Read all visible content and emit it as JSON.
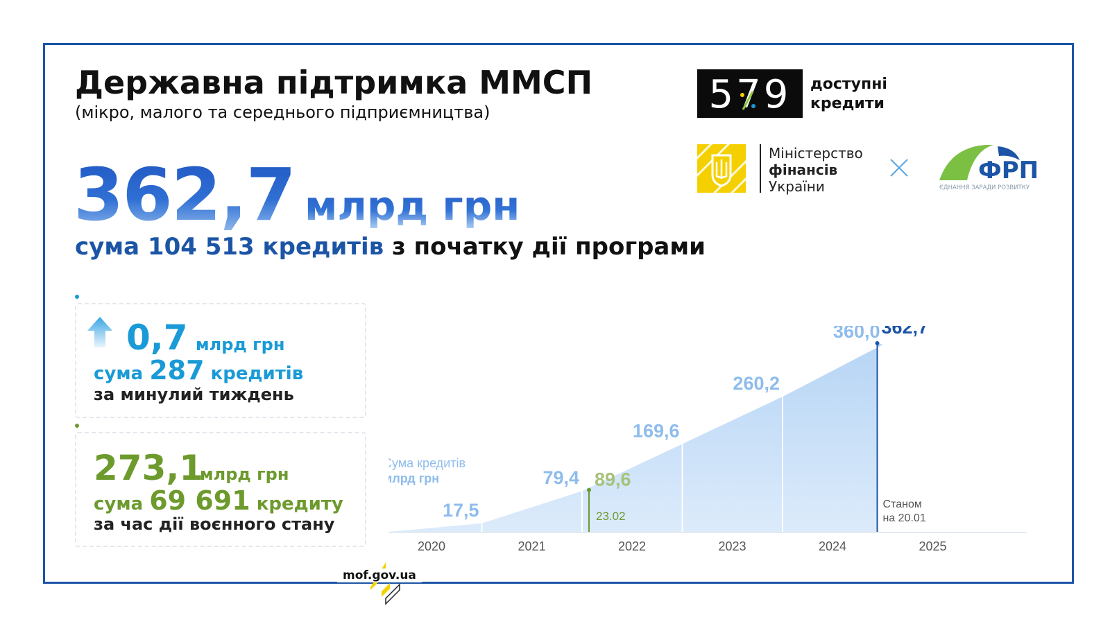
{
  "header": {
    "title": "Державна підтримка ММСП",
    "subtitle": "(мікро, малого та середнього підприємництва)"
  },
  "headline": {
    "value": "362,7",
    "unit": "млрд грн",
    "line_prefix": "сума",
    "count": "104 513",
    "count_word": "кредитів",
    "line_suffix": "з початку дії програми"
  },
  "weekly": {
    "value": "0,7",
    "unit": "млрд грн",
    "count_prefix": "сума",
    "count": "287",
    "count_word": "кредитів",
    "period": "за минулий тиждень",
    "color": "#1a9ad6"
  },
  "wartime": {
    "value": "273,1",
    "unit": "млрд грн",
    "count_prefix": "сума",
    "count": "69 691",
    "count_word": "кредиту",
    "period": "за час дії воєнного стану",
    "color": "#6d9a2d"
  },
  "logos": {
    "program_digits": "579",
    "program_line1": "доступні",
    "program_line2": "кредити",
    "ministry_line1": "Міністерство",
    "ministry_line2": "фінансів",
    "ministry_line3": "України",
    "partner_name": "ФРП",
    "partner_tagline": "ЄДНАННЯ ЗАРАДИ РОЗВИТКУ"
  },
  "footer": {
    "url": "mof.gov.ua"
  },
  "chart_data": {
    "type": "area",
    "legend_line1": "Сума кредитів",
    "legend_line2": "млрд грн",
    "categories": [
      "2020",
      "2021",
      "2022",
      "2023",
      "2024",
      "2025"
    ],
    "points": [
      {
        "x": "2020",
        "label": "17,5",
        "value": 17.5
      },
      {
        "x": "2021",
        "label": "79,4",
        "value": 79.4
      },
      {
        "x": "2022",
        "label": "169,6",
        "value": 169.6
      },
      {
        "x": "2023",
        "label": "260,2",
        "value": 260.2
      },
      {
        "x": "2024",
        "label": "360,0",
        "value": 360.0
      }
    ],
    "annotations": [
      {
        "date": "23.02",
        "value": 89.6,
        "label": "89,6",
        "color": "#6d9a2d"
      },
      {
        "date_line1": "Станом",
        "date_line2": "на 20.01",
        "value": 362.7,
        "label": "362,7",
        "color": "#1c55a6"
      }
    ],
    "ylim": [
      0,
      380
    ],
    "fill_color": "#c3dcf7",
    "value_label_color": "#8ebcec"
  }
}
